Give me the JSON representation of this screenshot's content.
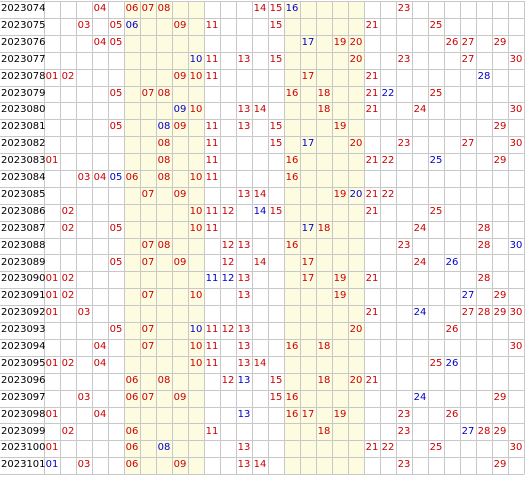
{
  "colors": {
    "red": "#cc0000",
    "blue": "#0000cc",
    "highlight_band": "#fdfbe0",
    "grid_line": "#c8c8c8",
    "issue_text": "#000000"
  },
  "rows": [
    {
      "issue": "2023074",
      "red": [
        "04",
        "06",
        "07",
        "08",
        "14",
        "15",
        "23"
      ],
      "blue": [
        "16"
      ]
    },
    {
      "issue": "2023075",
      "red": [
        "03",
        "05",
        "09",
        "11",
        "15",
        "21",
        "25"
      ],
      "blue": [
        "06"
      ]
    },
    {
      "issue": "2023076",
      "red": [
        "04",
        "05",
        "19",
        "20",
        "26",
        "27",
        "29"
      ],
      "blue": [
        "17"
      ]
    },
    {
      "issue": "2023077",
      "red": [
        "11",
        "13",
        "15",
        "20",
        "23",
        "27",
        "30"
      ],
      "blue": [
        "10"
      ]
    },
    {
      "issue": "2023078",
      "red": [
        "01",
        "02",
        "09",
        "10",
        "11",
        "17",
        "21"
      ],
      "blue": [
        "28"
      ]
    },
    {
      "issue": "2023079",
      "red": [
        "05",
        "07",
        "08",
        "16",
        "18",
        "21",
        "25"
      ],
      "blue": [
        "22"
      ]
    },
    {
      "issue": "2023080",
      "red": [
        "10",
        "13",
        "14",
        "18",
        "21",
        "24",
        "30"
      ],
      "blue": [
        "09"
      ]
    },
    {
      "issue": "2023081",
      "red": [
        "05",
        "09",
        "11",
        "13",
        "15",
        "19",
        "29"
      ],
      "blue": [
        "08"
      ]
    },
    {
      "issue": "2023082",
      "red": [
        "08",
        "11",
        "15",
        "20",
        "23",
        "27",
        "30"
      ],
      "blue": [
        "17"
      ]
    },
    {
      "issue": "2023083",
      "red": [
        "01",
        "08",
        "11",
        "16",
        "21",
        "22",
        "29"
      ],
      "blue": [
        "25"
      ]
    },
    {
      "issue": "2023084",
      "red": [
        "03",
        "04",
        "06",
        "08",
        "10",
        "11",
        "16"
      ],
      "blue": [
        "05"
      ]
    },
    {
      "issue": "2023085",
      "red": [
        "07",
        "09",
        "13",
        "14",
        "19",
        "21",
        "22"
      ],
      "blue": [
        "20"
      ]
    },
    {
      "issue": "2023086",
      "red": [
        "02",
        "10",
        "11",
        "12",
        "15",
        "21",
        "25"
      ],
      "blue": [
        "14"
      ]
    },
    {
      "issue": "2023087",
      "red": [
        "02",
        "05",
        "10",
        "11",
        "18",
        "24",
        "28"
      ],
      "blue": [
        "17"
      ]
    },
    {
      "issue": "2023088",
      "red": [
        "07",
        "08",
        "12",
        "13",
        "16",
        "23",
        "28"
      ],
      "blue": [
        "30"
      ]
    },
    {
      "issue": "2023089",
      "red": [
        "05",
        "07",
        "09",
        "12",
        "14",
        "17",
        "24"
      ],
      "blue": [
        "26"
      ]
    },
    {
      "issue": "2023090",
      "red": [
        "01",
        "02",
        "13",
        "17",
        "19",
        "21",
        "28"
      ],
      "blue": [
        "11",
        "12"
      ]
    },
    {
      "issue": "2023091",
      "red": [
        "01",
        "02",
        "07",
        "10",
        "13",
        "19",
        "29"
      ],
      "blue": [
        "27"
      ]
    },
    {
      "issue": "2023092",
      "red": [
        "01",
        "03",
        "21",
        "27",
        "28",
        "29",
        "30"
      ],
      "blue": [
        "24"
      ]
    },
    {
      "issue": "2023093",
      "red": [
        "05",
        "07",
        "11",
        "12",
        "13",
        "20",
        "26"
      ],
      "blue": [
        "10"
      ]
    },
    {
      "issue": "2023094",
      "red": [
        "04",
        "07",
        "10",
        "11",
        "13",
        "16",
        "18",
        "30"
      ],
      "blue": []
    },
    {
      "issue": "2023095",
      "red": [
        "01",
        "02",
        "04",
        "10",
        "11",
        "13",
        "14",
        "25"
      ],
      "blue": [
        "26"
      ]
    },
    {
      "issue": "2023096",
      "red": [
        "06",
        "08",
        "12",
        "15",
        "18",
        "20",
        "21"
      ],
      "blue": [
        "13"
      ]
    },
    {
      "issue": "2023097",
      "red": [
        "03",
        "06",
        "07",
        "09",
        "15",
        "16",
        "29"
      ],
      "blue": [
        "24"
      ]
    },
    {
      "issue": "2023098",
      "red": [
        "01",
        "04",
        "16",
        "17",
        "19",
        "23",
        "26"
      ],
      "blue": [
        "13"
      ]
    },
    {
      "issue": "2023099",
      "red": [
        "02",
        "06",
        "11",
        "18",
        "23",
        "28",
        "29"
      ],
      "blue": [
        "27"
      ]
    },
    {
      "issue": "2023100",
      "red": [
        "01",
        "06",
        "13",
        "21",
        "22",
        "25",
        "30"
      ],
      "blue": [
        "08"
      ]
    },
    {
      "issue": "2023101",
      "red": [
        "03",
        "06",
        "09",
        "13",
        "14",
        "23",
        "29"
      ],
      "blue": [
        "01"
      ]
    }
  ]
}
